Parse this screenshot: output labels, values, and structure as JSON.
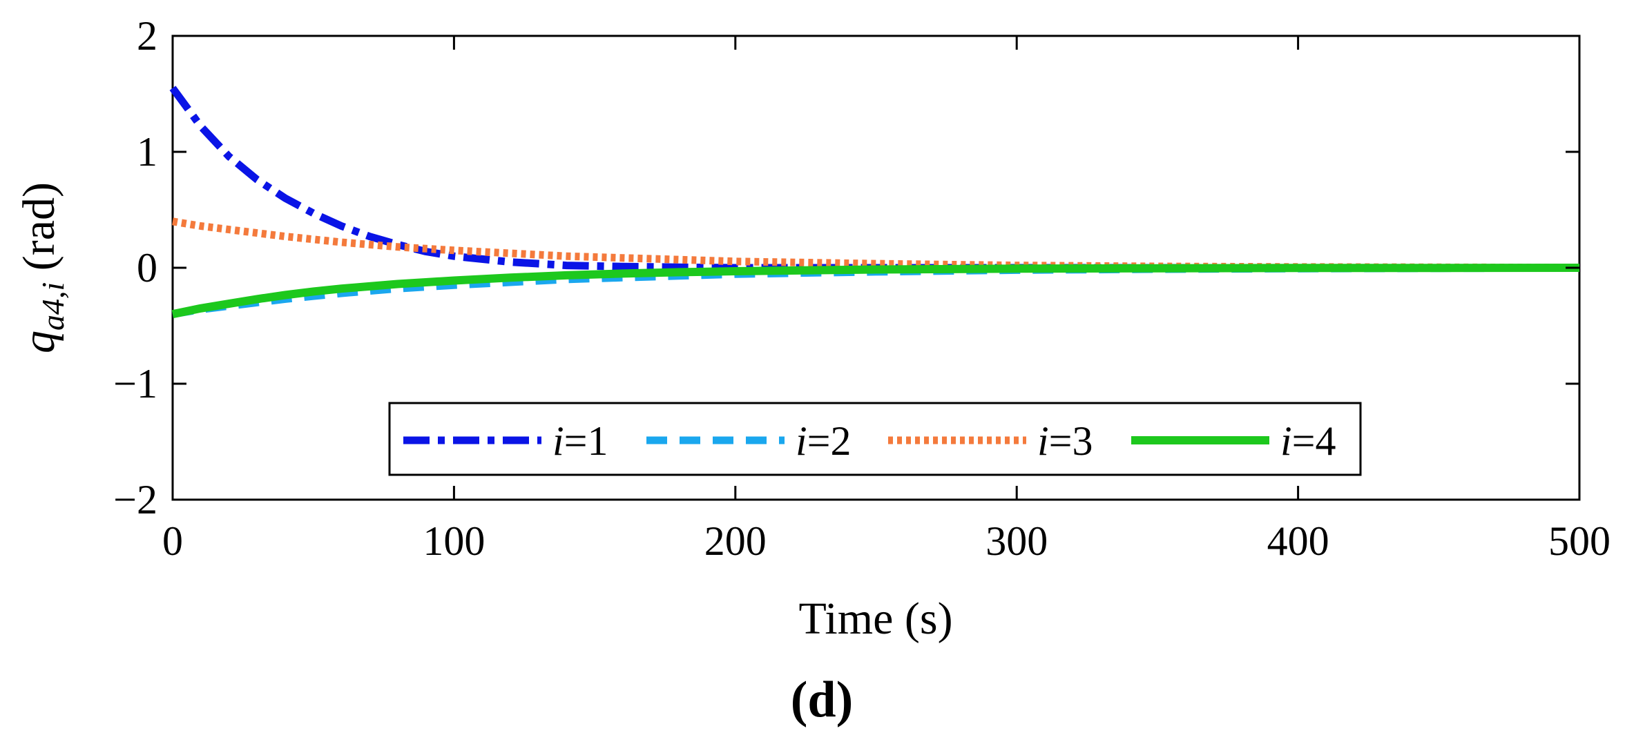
{
  "chart_data": {
    "type": "line",
    "title": "",
    "panel_label": "(d)",
    "xlabel": "Time (s)",
    "ylabel": {
      "base": "q",
      "subscript": "a4,",
      "subscript_italic": "i",
      "unit": " (rad)"
    },
    "xlim": [
      0,
      500
    ],
    "ylim": [
      -2,
      2
    ],
    "xticks": [
      0,
      100,
      200,
      300,
      400,
      500
    ],
    "xtick_labels": [
      "0",
      "100",
      "200",
      "300",
      "400",
      "500"
    ],
    "yticks": [
      -2,
      -1,
      0,
      1,
      2
    ],
    "ytick_labels": [
      "−2",
      "−1",
      "0",
      "1",
      "2"
    ],
    "grid": false,
    "legend_position": "bottom-center",
    "x": [
      0,
      10,
      20,
      30,
      40,
      50,
      60,
      70,
      80,
      90,
      100,
      120,
      140,
      160,
      180,
      200,
      250,
      300,
      350,
      400,
      450,
      500
    ],
    "series": [
      {
        "name": "i=1",
        "index_label": "i",
        "value_label": "=1",
        "color": "#0a14e6",
        "style": "dash-dot",
        "values": [
          1.55,
          1.22,
          0.96,
          0.76,
          0.6,
          0.47,
          0.36,
          0.27,
          0.2,
          0.14,
          0.1,
          0.05,
          0.02,
          0.01,
          0.005,
          0.0,
          0.0,
          0.0,
          0.0,
          0.0,
          0.0,
          0.0
        ]
      },
      {
        "name": "i=2",
        "index_label": "i",
        "value_label": "=2",
        "color": "#1aa7ee",
        "style": "dashed",
        "values": [
          -0.4,
          -0.36,
          -0.33,
          -0.3,
          -0.27,
          -0.245,
          -0.22,
          -0.2,
          -0.18,
          -0.165,
          -0.15,
          -0.125,
          -0.1,
          -0.085,
          -0.07,
          -0.055,
          -0.035,
          -0.02,
          -0.012,
          -0.007,
          -0.004,
          -0.002
        ]
      },
      {
        "name": "i=3",
        "index_label": "i",
        "value_label": "=3",
        "color": "#f47a3c",
        "style": "dotted",
        "values": [
          0.4,
          0.36,
          0.33,
          0.3,
          0.27,
          0.245,
          0.22,
          0.2,
          0.18,
          0.165,
          0.15,
          0.125,
          0.1,
          0.085,
          0.07,
          0.055,
          0.035,
          0.02,
          0.012,
          0.007,
          0.004,
          0.002
        ]
      },
      {
        "name": "i=4",
        "index_label": "i",
        "value_label": "=4",
        "color": "#1dc81d",
        "style": "solid",
        "values": [
          -0.4,
          -0.35,
          -0.31,
          -0.27,
          -0.235,
          -0.205,
          -0.18,
          -0.16,
          -0.14,
          -0.125,
          -0.11,
          -0.085,
          -0.065,
          -0.05,
          -0.038,
          -0.03,
          -0.015,
          -0.008,
          -0.004,
          -0.002,
          -0.001,
          0.0
        ]
      }
    ]
  }
}
